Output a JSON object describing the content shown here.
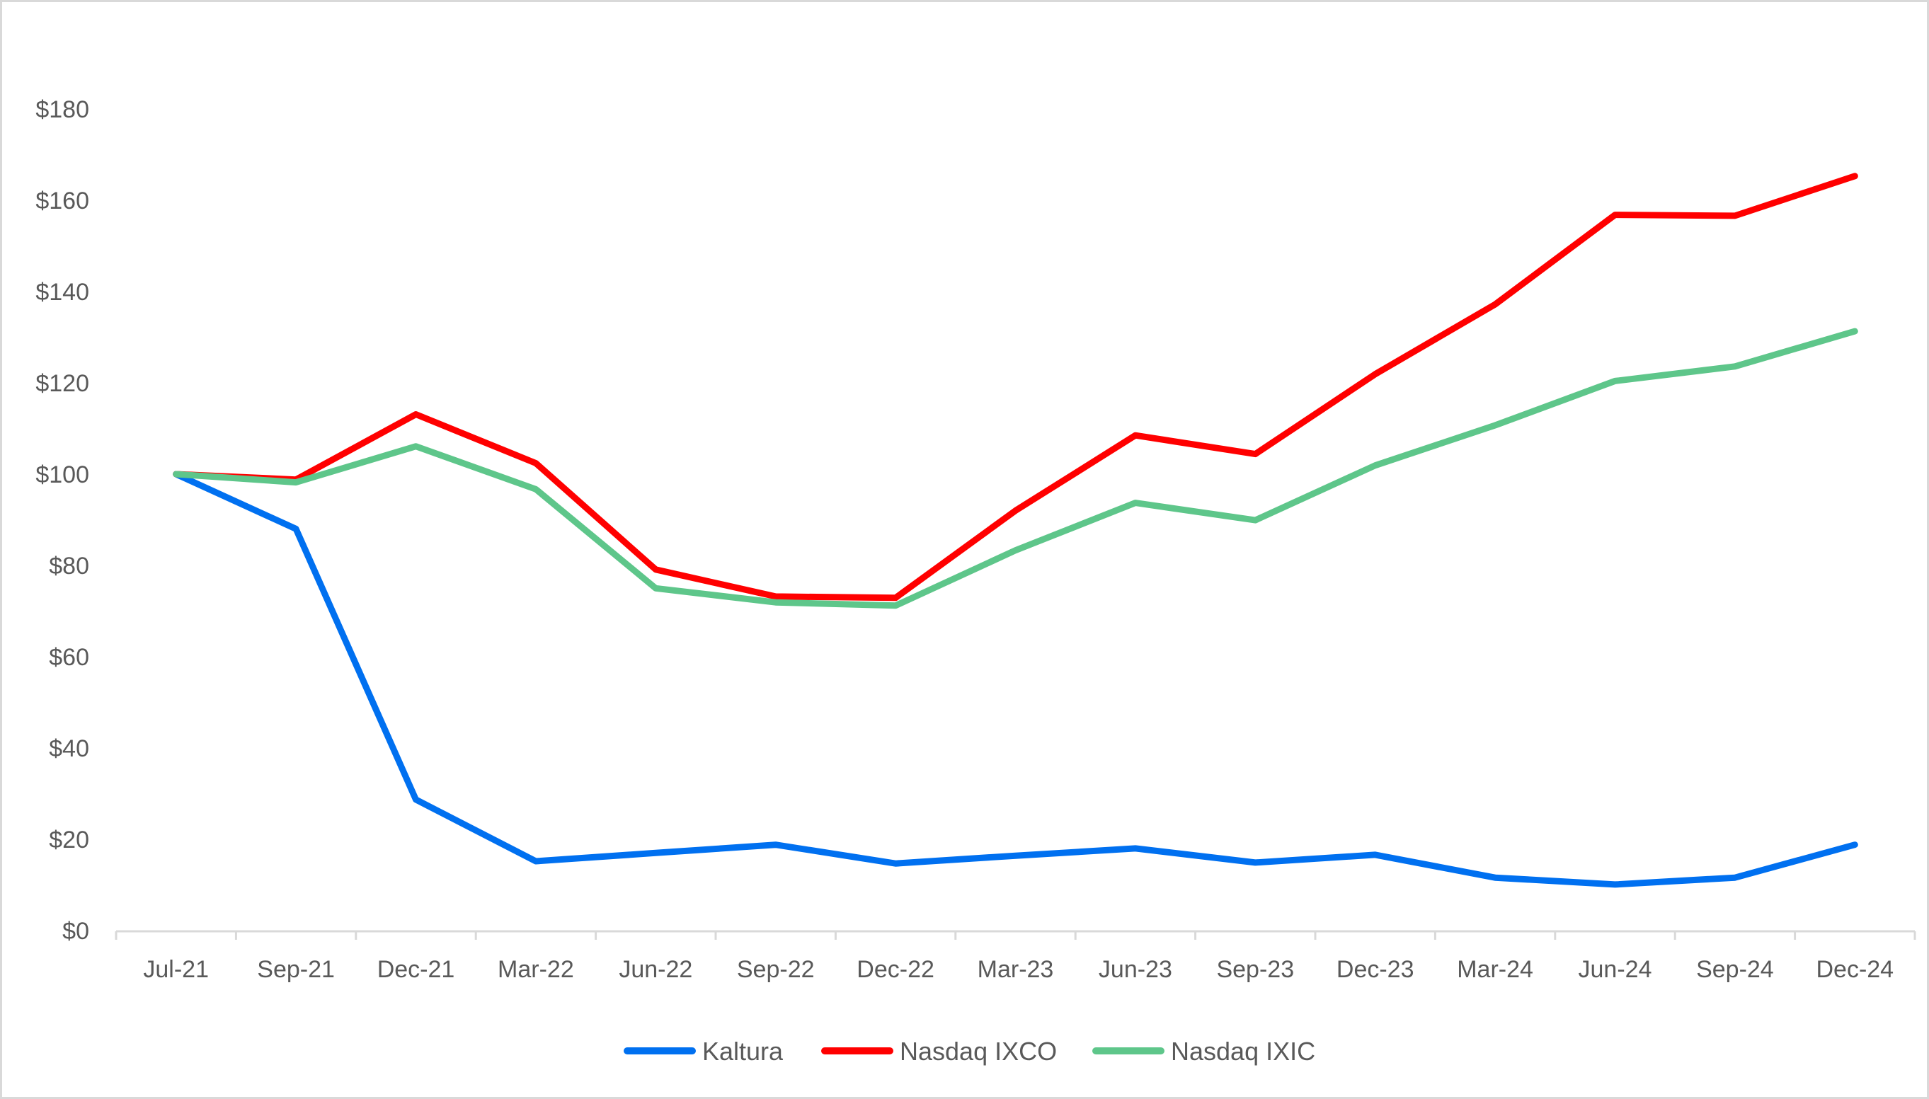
{
  "chart_data": {
    "type": "line",
    "title": "",
    "xlabel": "",
    "ylabel": "",
    "ylim": [
      0,
      180
    ],
    "y_ticks": [
      0,
      20,
      40,
      60,
      80,
      100,
      120,
      140,
      160,
      180
    ],
    "y_tick_labels": [
      "$0",
      "$20",
      "$40",
      "$60",
      "$80",
      "$100",
      "$120",
      "$140",
      "$160",
      "$180"
    ],
    "grid": false,
    "legend_position": "bottom",
    "categories": [
      "Jul-21",
      "Sep-21",
      "Dec-21",
      "Mar-22",
      "Jun-22",
      "Sep-22",
      "Dec-22",
      "Mar-23",
      "Jun-23",
      "Sep-23",
      "Dec-23",
      "Mar-24",
      "Jun-24",
      "Sep-24",
      "Dec-24"
    ],
    "series": [
      {
        "name": "Kaltura",
        "color": "#0070f0",
        "values": [
          100,
          88,
          28.7,
          15.2,
          17,
          18.8,
          14.7,
          16.4,
          18,
          14.9,
          16.6,
          11.6,
          10.1,
          11.6,
          18.8
        ]
      },
      {
        "name": "Nasdaq IXCO",
        "color": "#ff0000",
        "values": [
          100,
          98.8,
          113.1,
          102.4,
          79.1,
          73.2,
          72.9,
          92,
          108.5,
          104.4,
          121.9,
          137.2,
          156.8,
          156.6,
          165.3
        ]
      },
      {
        "name": "Nasdaq IXIC",
        "color": "#5ec68a",
        "values": [
          100,
          98.2,
          106.1,
          96.7,
          75,
          71.9,
          71.2,
          83.3,
          93.7,
          89.9,
          101.9,
          110.7,
          120.4,
          123.6,
          131.3
        ]
      }
    ]
  },
  "colors": {
    "axis": "#d9d9d9",
    "text": "#595959",
    "border": "#d9d9d9",
    "background": "#ffffff"
  }
}
